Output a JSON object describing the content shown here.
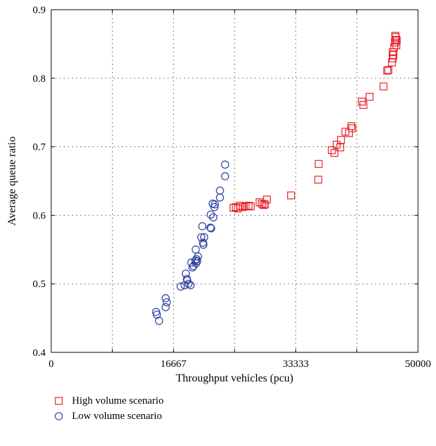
{
  "chart_data": {
    "type": "scatter",
    "title": "",
    "xlabel": "Throughput vehicles (pcu)",
    "ylabel": "Average queue ratio",
    "xlim": [
      0,
      50000
    ],
    "ylim": [
      0.4,
      0.9
    ],
    "xticks": [
      0,
      16667,
      33333,
      50000
    ],
    "xtick_labels": [
      "0",
      "16667",
      "33333",
      "50000"
    ],
    "xgrid": [
      8333,
      16667,
      25000,
      33333,
      41667
    ],
    "yticks": [
      0.4,
      0.5,
      0.6,
      0.7,
      0.8,
      0.9
    ],
    "ytick_labels": [
      "0.4",
      "0.5",
      "0.6",
      "0.7",
      "0.8",
      "0.9"
    ],
    "grid": true,
    "legend_position": "below",
    "series": [
      {
        "name": "High volume scenario",
        "marker": "square",
        "color": "#e8212b",
        "points": [
          [
            24850,
            0.611
          ],
          [
            25150,
            0.612
          ],
          [
            25450,
            0.61
          ],
          [
            25750,
            0.614
          ],
          [
            26100,
            0.612
          ],
          [
            26500,
            0.613
          ],
          [
            26900,
            0.614
          ],
          [
            27200,
            0.613
          ],
          [
            28400,
            0.619
          ],
          [
            28700,
            0.617
          ],
          [
            28950,
            0.615
          ],
          [
            29150,
            0.616
          ],
          [
            29400,
            0.623
          ],
          [
            32700,
            0.629
          ],
          [
            36400,
            0.652
          ],
          [
            36450,
            0.675
          ],
          [
            38250,
            0.695
          ],
          [
            38600,
            0.691
          ],
          [
            38900,
            0.703
          ],
          [
            39400,
            0.699
          ],
          [
            39500,
            0.71
          ],
          [
            40100,
            0.722
          ],
          [
            40600,
            0.72
          ],
          [
            40900,
            0.73
          ],
          [
            41050,
            0.727
          ],
          [
            42350,
            0.766
          ],
          [
            42550,
            0.761
          ],
          [
            43400,
            0.773
          ],
          [
            45300,
            0.788
          ],
          [
            45800,
            0.811
          ],
          [
            45950,
            0.812
          ],
          [
            46450,
            0.823
          ],
          [
            46550,
            0.829
          ],
          [
            46550,
            0.838
          ],
          [
            46650,
            0.834
          ],
          [
            46750,
            0.845
          ],
          [
            46850,
            0.852
          ],
          [
            46950,
            0.86
          ],
          [
            47050,
            0.848
          ],
          [
            47100,
            0.855
          ],
          [
            46900,
            0.862
          ],
          [
            47000,
            0.856
          ]
        ]
      },
      {
        "name": "Low volume scenario",
        "marker": "circle",
        "color": "#2b3f9e",
        "points": [
          [
            14300,
            0.459
          ],
          [
            14400,
            0.455
          ],
          [
            14700,
            0.446
          ],
          [
            15600,
            0.479
          ],
          [
            15750,
            0.473
          ],
          [
            15600,
            0.466
          ],
          [
            17650,
            0.496
          ],
          [
            18200,
            0.498
          ],
          [
            18350,
            0.515
          ],
          [
            18500,
            0.507
          ],
          [
            18550,
            0.505
          ],
          [
            18700,
            0.5
          ],
          [
            19000,
            0.498
          ],
          [
            19100,
            0.531
          ],
          [
            19250,
            0.524
          ],
          [
            19400,
            0.526
          ],
          [
            19650,
            0.534
          ],
          [
            19700,
            0.55
          ],
          [
            19750,
            0.53
          ],
          [
            19800,
            0.536
          ],
          [
            19900,
            0.533
          ],
          [
            20000,
            0.54
          ],
          [
            20450,
            0.568
          ],
          [
            20600,
            0.584
          ],
          [
            20700,
            0.56
          ],
          [
            20750,
            0.557
          ],
          [
            20850,
            0.568
          ],
          [
            21700,
            0.582
          ],
          [
            21750,
            0.601
          ],
          [
            21800,
            0.581
          ],
          [
            22000,
            0.617
          ],
          [
            22100,
            0.597
          ],
          [
            22250,
            0.612
          ],
          [
            22300,
            0.616
          ],
          [
            23000,
            0.626
          ],
          [
            23000,
            0.636
          ],
          [
            23700,
            0.657
          ],
          [
            23700,
            0.674
          ]
        ]
      }
    ]
  }
}
